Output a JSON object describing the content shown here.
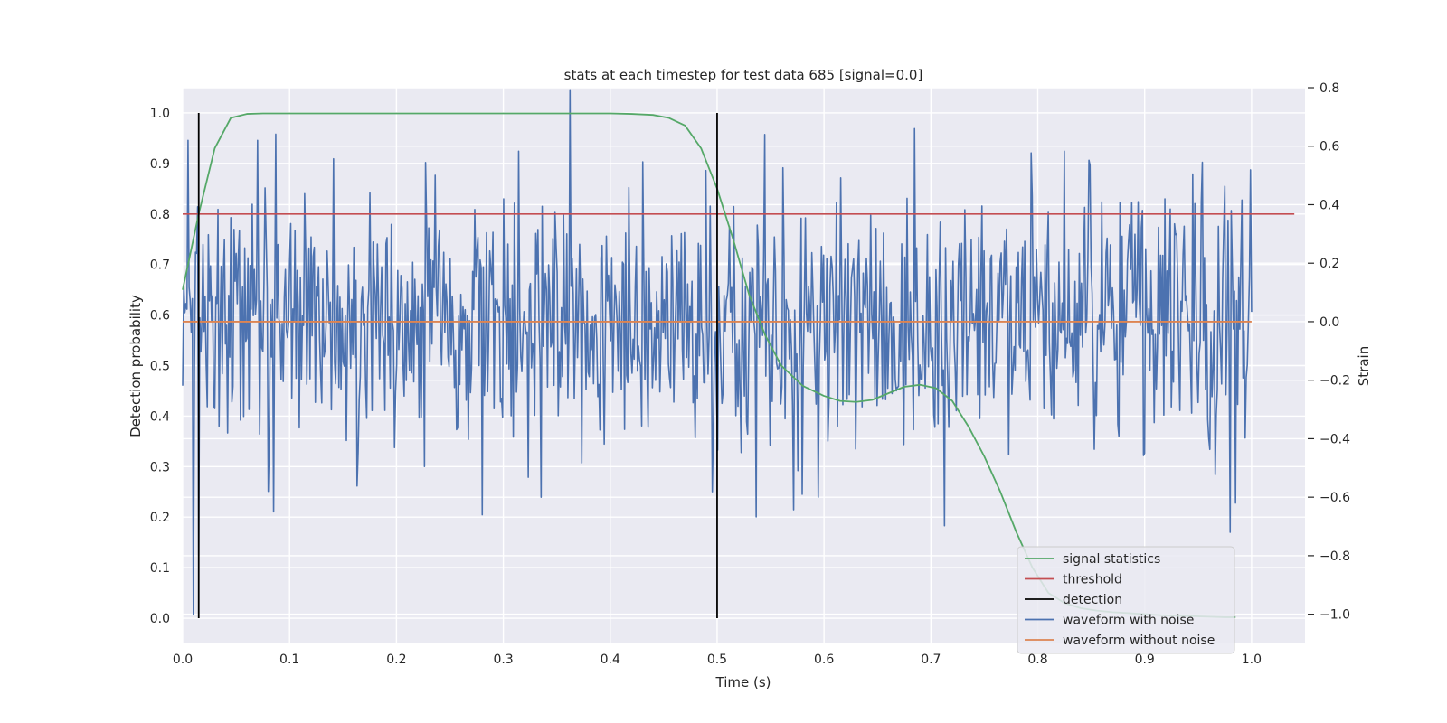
{
  "chart_data": {
    "type": "line",
    "title": "stats at each timestep for test data 685 [signal=0.0]",
    "xlabel": "Time (s)",
    "ylabel": "Detection probability",
    "y2label": "Strain",
    "xlim": [
      0.0,
      1.05
    ],
    "ylim": [
      -0.05,
      1.05
    ],
    "y2lim": [
      -1.1,
      0.8
    ],
    "xticks": [
      "0.0",
      "0.1",
      "0.2",
      "0.3",
      "0.4",
      "0.5",
      "0.6",
      "0.7",
      "0.8",
      "0.9",
      "1.0"
    ],
    "yticks": [
      "0.0",
      "0.1",
      "0.2",
      "0.3",
      "0.4",
      "0.5",
      "0.6",
      "0.7",
      "0.8",
      "0.9",
      "1.0"
    ],
    "y2ticks": [
      "−1.0",
      "−0.8",
      "−0.6",
      "−0.4",
      "−0.2",
      "0.0",
      "0.2",
      "0.4",
      "0.6",
      "0.8"
    ],
    "legend_position": "lower-right",
    "series": [
      {
        "name": "signal statistics",
        "color": "#55a868",
        "axis": "left",
        "x": [
          0.0,
          0.015,
          0.03,
          0.045,
          0.06,
          0.075,
          0.1,
          0.15,
          0.2,
          0.25,
          0.3,
          0.35,
          0.4,
          0.42,
          0.44,
          0.455,
          0.47,
          0.485,
          0.5,
          0.515,
          0.53,
          0.545,
          0.56,
          0.58,
          0.6,
          0.615,
          0.63,
          0.645,
          0.66,
          0.675,
          0.69,
          0.705,
          0.72,
          0.735,
          0.75,
          0.765,
          0.78,
          0.795,
          0.81,
          0.825,
          0.84,
          0.855,
          0.87,
          0.885,
          0.9,
          0.915,
          0.93,
          0.945,
          0.96,
          0.975,
          0.985
        ],
        "values": [
          0.65,
          0.8,
          0.93,
          0.99,
          0.998,
          0.999,
          0.999,
          0.999,
          0.999,
          0.999,
          0.999,
          0.999,
          0.999,
          0.998,
          0.996,
          0.99,
          0.975,
          0.93,
          0.85,
          0.75,
          0.64,
          0.56,
          0.5,
          0.46,
          0.44,
          0.43,
          0.428,
          0.432,
          0.445,
          0.458,
          0.462,
          0.455,
          0.43,
          0.38,
          0.32,
          0.25,
          0.17,
          0.1,
          0.05,
          0.03,
          0.02,
          0.015,
          0.012,
          0.01,
          0.008,
          0.006,
          0.005,
          0.004,
          0.003,
          0.002,
          0.002
        ]
      },
      {
        "name": "threshold",
        "color": "#c44e52",
        "axis": "left",
        "x": [
          0.0,
          1.04
        ],
        "values": [
          0.8,
          0.8
        ]
      },
      {
        "name": "detection",
        "color": "#000000",
        "axis": "left",
        "x": [
          0.015,
          0.5
        ],
        "values": [
          1.0,
          1.0
        ],
        "style": "vertical-lines-from-0"
      },
      {
        "name": "waveform with noise",
        "color": "#4c72b0",
        "axis": "right",
        "sample_count": 1000,
        "x_range": [
          0.0,
          1.0
        ],
        "noise_std": 0.22,
        "seed": 685,
        "peaks": [
          [
            0.005,
            0.62
          ],
          [
            0.01,
            -1.0
          ],
          [
            0.015,
            -0.8
          ],
          [
            0.062,
            -0.3
          ],
          [
            0.07,
            0.62
          ],
          [
            0.08,
            -0.58
          ],
          [
            0.085,
            -0.65
          ],
          [
            0.28,
            -0.66
          ],
          [
            0.335,
            -0.6
          ],
          [
            0.362,
            0.79
          ],
          [
            0.545,
            0.64
          ],
          [
            0.58,
            -0.59
          ],
          [
            0.595,
            -0.6
          ],
          [
            0.685,
            0.66
          ],
          [
            0.675,
            -0.42
          ],
          [
            0.9,
            -0.45
          ],
          [
            0.96,
            -0.4
          ],
          [
            0.98,
            -0.72
          ],
          [
            0.985,
            -0.62
          ]
        ]
      },
      {
        "name": "waveform without noise",
        "color": "#dd8452",
        "axis": "right",
        "x": [
          0.0,
          1.0
        ],
        "values": [
          0.0,
          0.0
        ]
      }
    ]
  }
}
